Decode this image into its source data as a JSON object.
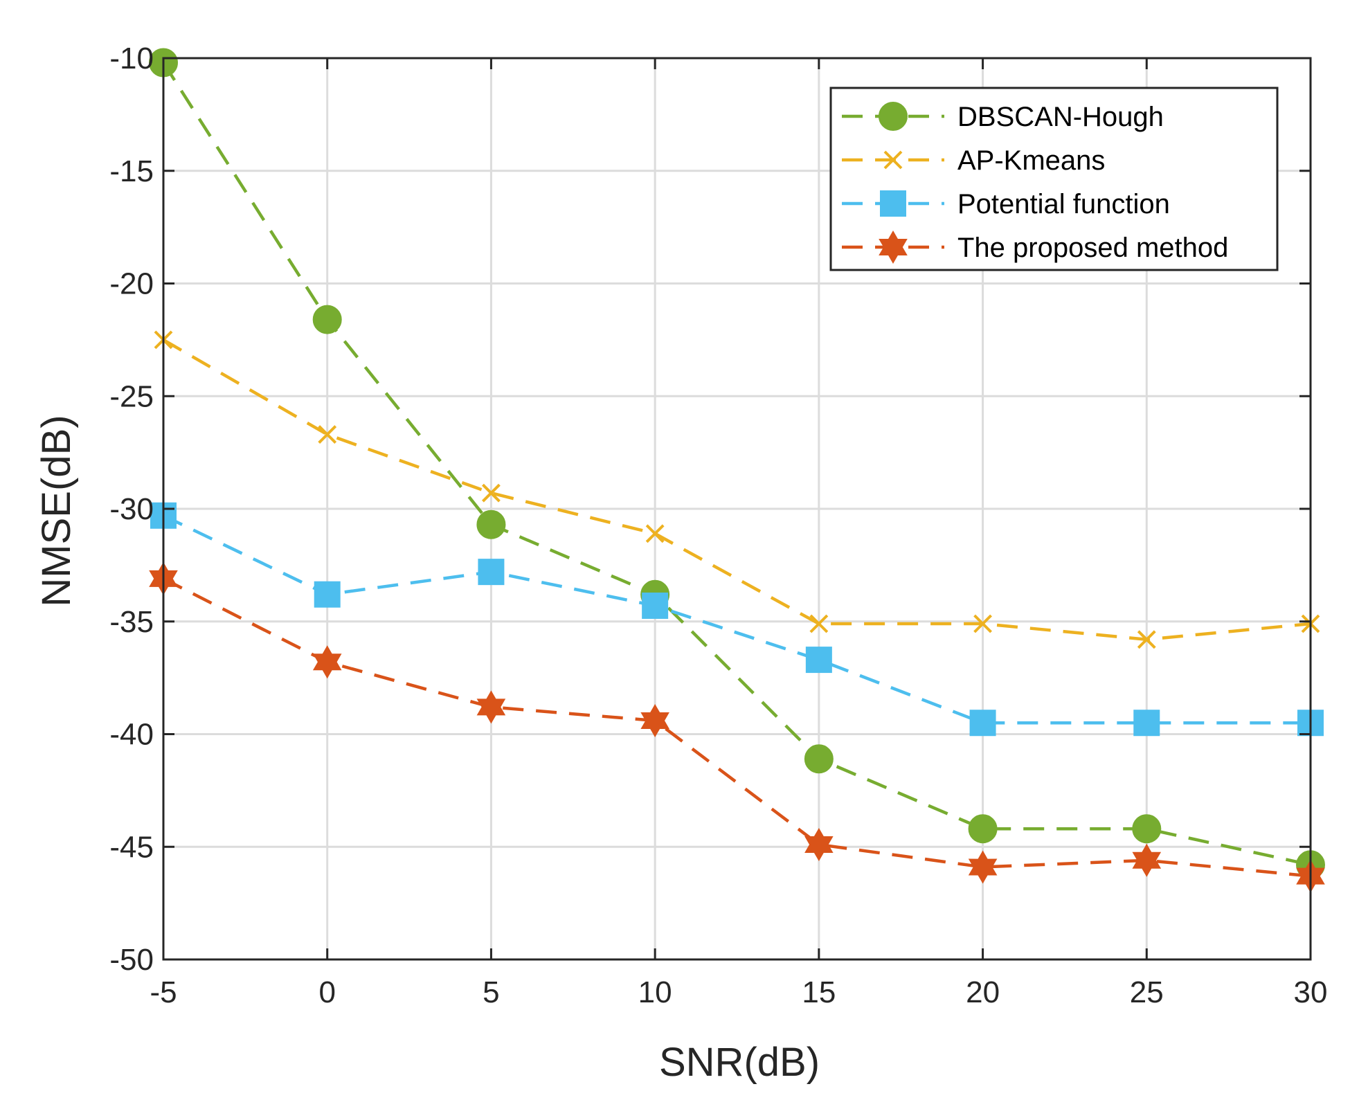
{
  "chart_data": {
    "type": "line",
    "title": "",
    "xlabel": "SNR(dB)",
    "ylabel": "NMSE(dB)",
    "xlim": [
      -5,
      30
    ],
    "ylim": [
      -50,
      -10
    ],
    "x": [
      -5,
      0,
      5,
      10,
      15,
      20,
      25,
      30
    ],
    "xticks": [
      "-5",
      "0",
      "5",
      "10",
      "15",
      "20",
      "25",
      "30"
    ],
    "yticks": [
      "-10",
      "-15",
      "-20",
      "-25",
      "-30",
      "-35",
      "-40",
      "-45",
      "-50"
    ],
    "grid": true,
    "legend_position": "top-right",
    "series": [
      {
        "name": "DBSCAN-Hough",
        "color": "#77ac30",
        "marker": "circle",
        "line_style": "dashed",
        "values": [
          -10.2,
          -21.6,
          -30.7,
          -33.8,
          -41.1,
          -44.2,
          -44.2,
          -45.8
        ]
      },
      {
        "name": "AP-Kmeans",
        "color": "#edb120",
        "marker": "x",
        "line_style": "dashed",
        "values": [
          -22.5,
          -26.7,
          -29.3,
          -31.1,
          -35.1,
          -35.1,
          -35.8,
          -35.1
        ]
      },
      {
        "name": "Potential function",
        "color": "#4dbeee",
        "marker": "square",
        "line_style": "dashed",
        "values": [
          -30.3,
          -33.8,
          -32.8,
          -34.3,
          -36.7,
          -39.5,
          -39.5,
          -39.5
        ]
      },
      {
        "name": "The proposed method",
        "color": "#d95319",
        "marker": "hexagram",
        "line_style": "dashed",
        "values": [
          -33.1,
          -36.8,
          -38.8,
          -39.4,
          -44.9,
          -45.9,
          -45.6,
          -46.3
        ]
      }
    ]
  }
}
